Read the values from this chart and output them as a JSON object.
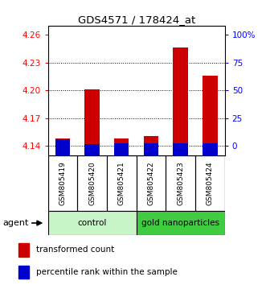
{
  "title": "GDS4571 / 178424_at",
  "samples": [
    "GSM805419",
    "GSM805420",
    "GSM805421",
    "GSM805422",
    "GSM805423",
    "GSM805424"
  ],
  "red_values": [
    4.148,
    4.201,
    4.148,
    4.151,
    4.246,
    4.216
  ],
  "blue_values": [
    4.147,
    4.142,
    4.143,
    4.143,
    4.143,
    4.143
  ],
  "ymin": 4.13,
  "ymax": 4.27,
  "yticks_left": [
    4.14,
    4.17,
    4.2,
    4.23,
    4.26
  ],
  "yticks_right": [
    0,
    25,
    50,
    75,
    100
  ],
  "groups": [
    {
      "label": "control",
      "start": 0,
      "end": 3,
      "color": "#c8f5c8"
    },
    {
      "label": "gold nanoparticles",
      "start": 3,
      "end": 6,
      "color": "#40cc40"
    }
  ],
  "bar_width": 0.5,
  "red_color": "#cc0000",
  "blue_color": "#0000cc",
  "legend_red": "transformed count",
  "legend_blue": "percentile rank within the sample",
  "agent_label": "agent",
  "sample_bg_color": "#d0d0d0",
  "plot_bg": "#ffffff"
}
